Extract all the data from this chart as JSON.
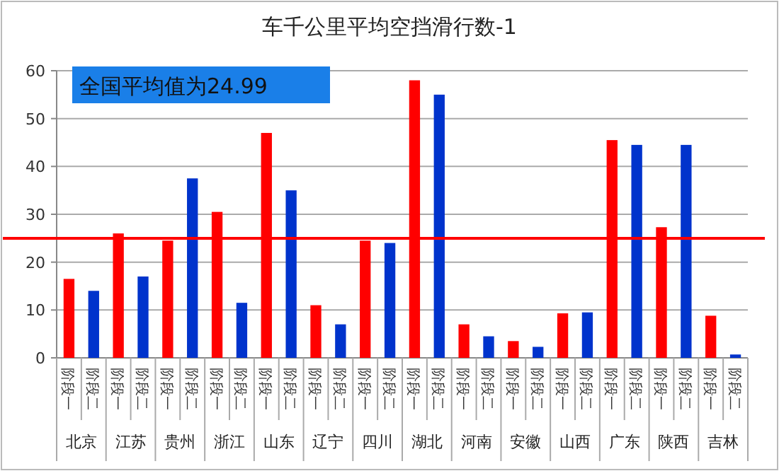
{
  "chart_data": {
    "type": "bar",
    "title": "车千公里平均空挡滑行数-1",
    "categories": [
      "阶段一",
      "阶段二",
      "阶段一",
      "阶段二",
      "阶段一",
      "阶段二",
      "阶段一",
      "阶段二",
      "阶段一",
      "阶段二",
      "阶段一",
      "阶段二",
      "阶段一",
      "阶段二",
      "阶段一",
      "阶段二",
      "阶段一",
      "阶段二",
      "阶段一",
      "阶段二",
      "阶段一",
      "阶段二",
      "阶段一",
      "阶段二",
      "阶段一",
      "阶段二",
      "阶段一",
      "阶段二"
    ],
    "values": [
      16.5,
      14,
      26,
      17,
      24.5,
      37.5,
      30.5,
      11.5,
      47,
      35,
      11,
      7,
      24.5,
      24,
      58,
      55,
      7,
      4.5,
      3.5,
      2.3,
      9.3,
      9.5,
      45.5,
      44.5,
      27.3,
      44.5,
      8.8,
      0.7
    ],
    "colors": [
      "#ff0000",
      "#0033cc",
      "#ff0000",
      "#0033cc",
      "#ff0000",
      "#0033cc",
      "#ff0000",
      "#0033cc",
      "#ff0000",
      "#0033cc",
      "#ff0000",
      "#0033cc",
      "#ff0000",
      "#0033cc",
      "#ff0000",
      "#0033cc",
      "#ff0000",
      "#0033cc",
      "#ff0000",
      "#0033cc",
      "#ff0000",
      "#0033cc",
      "#ff0000",
      "#0033cc",
      "#ff0000",
      "#0033cc",
      "#ff0000",
      "#0033cc"
    ],
    "annotations": [
      "北京",
      "江苏",
      "贵州",
      "浙江",
      "山东",
      "辽宁",
      "四川",
      "湖北",
      "河南",
      "安徽",
      "山西",
      "广东",
      "陕西",
      "吉林",
      "全国平均值为24.99"
    ],
    "ref_lines": [
      {
        "axis": "y",
        "value": 24.99,
        "color": "#ff0000"
      }
    ],
    "ylim": [
      0,
      60
    ],
    "yticks": [
      0,
      10,
      20,
      30,
      40,
      50,
      60
    ],
    "grid": "y"
  }
}
